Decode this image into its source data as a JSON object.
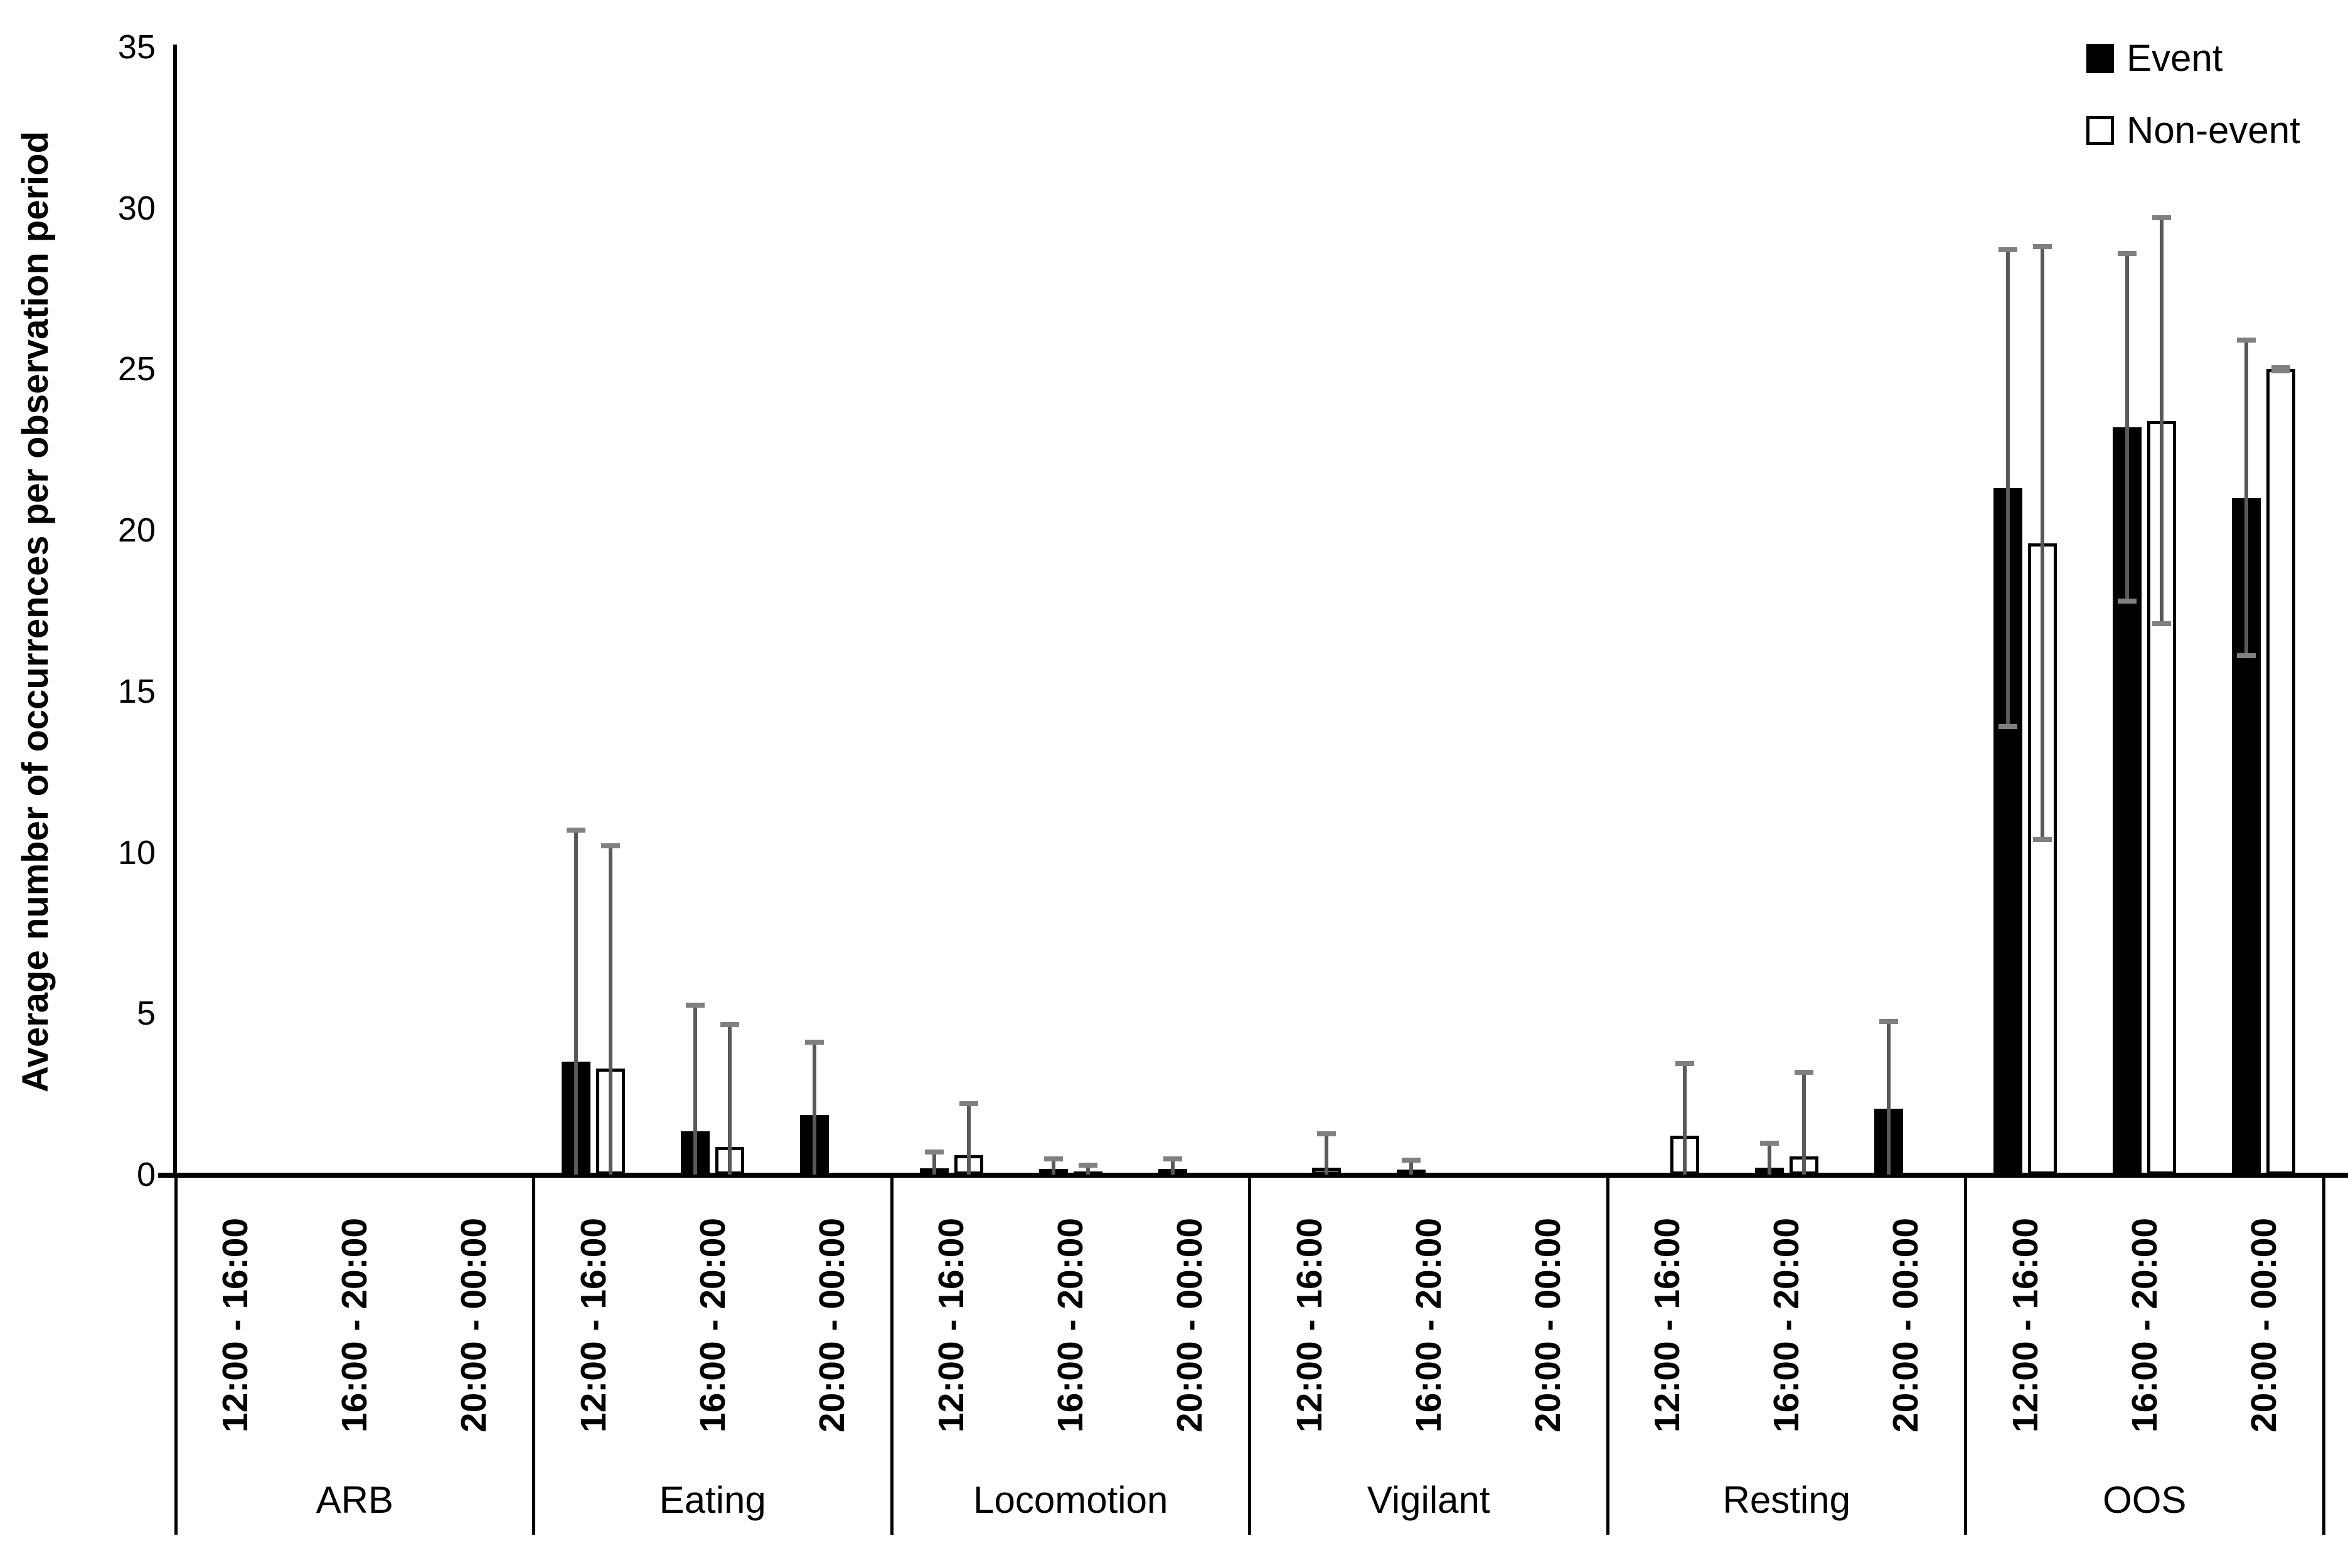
{
  "figure": {
    "background": "#ffffff"
  },
  "y_axis": {
    "title": "Average number of occurrences per observation period",
    "ticks": [
      "0",
      "5",
      "10",
      "15",
      "20",
      "25",
      "30",
      "35"
    ]
  },
  "legend": [
    {
      "label": "Event",
      "fill": "#000000"
    },
    {
      "label": "Non-event",
      "fill": "#ffffff"
    }
  ],
  "colors": {
    "bar_event": "#000000",
    "bar_non_event": "#ffffff",
    "bar_border": "#000000",
    "error_stem": "#595959",
    "error_cap": "#808080",
    "axis": "#000000"
  },
  "chart_data": {
    "type": "bar",
    "title": "",
    "xlabel": "",
    "ylabel": "Average number of occurrences per observation period",
    "ylim": [
      0,
      35
    ],
    "y_tick_step": 5,
    "grid": false,
    "legend_position": "top-right",
    "series_names": [
      "Event",
      "Non-event"
    ],
    "time_periods": [
      "12:00 - 16:00",
      "16:00 - 20:00",
      "20:00 - 00:00"
    ],
    "categories": [
      "ARB",
      "Eating",
      "Locomotion",
      "Vigilant",
      "Resting",
      "OOS"
    ],
    "groups": [
      {
        "category": "ARB",
        "periods": [
          {
            "period": "12:00 - 16:00",
            "event": {
              "value": 0,
              "error": 0
            },
            "non_event": {
              "value": 0,
              "error": 0
            }
          },
          {
            "period": "16:00 - 20:00",
            "event": {
              "value": 0,
              "error": 0
            },
            "non_event": {
              "value": 0,
              "error": 0
            }
          },
          {
            "period": "20:00 - 00:00",
            "event": {
              "value": 0,
              "error": 0
            },
            "non_event": {
              "value": 0,
              "error": 0
            }
          }
        ]
      },
      {
        "category": "Eating",
        "periods": [
          {
            "period": "12:00 - 16:00",
            "event": {
              "value": 3.5,
              "error": 7.2
            },
            "non_event": {
              "value": 3.3,
              "error": 6.9
            }
          },
          {
            "period": "16:00 - 20:00",
            "event": {
              "value": 1.35,
              "error": 3.9
            },
            "non_event": {
              "value": 0.85,
              "error": 3.8
            }
          },
          {
            "period": "20:00 - 00:00",
            "event": {
              "value": 1.85,
              "error": 2.25
            },
            "non_event": {
              "value": 0,
              "error": 0
            }
          }
        ]
      },
      {
        "category": "Locomotion",
        "periods": [
          {
            "period": "12:00 - 16:00",
            "event": {
              "value": 0.2,
              "error": 0.5
            },
            "non_event": {
              "value": 0.6,
              "error": 1.6
            }
          },
          {
            "period": "16:00 - 20:00",
            "event": {
              "value": 0.18,
              "error": 0.3
            },
            "non_event": {
              "value": 0.1,
              "error": 0.2
            }
          },
          {
            "period": "20:00 - 00:00",
            "event": {
              "value": 0.18,
              "error": 0.3
            },
            "non_event": {
              "value": 0,
              "error": 0
            }
          }
        ]
      },
      {
        "category": "Vigilant",
        "periods": [
          {
            "period": "12:00 - 16:00",
            "event": {
              "value": 0,
              "error": 0
            },
            "non_event": {
              "value": 0.22,
              "error": 1.05
            }
          },
          {
            "period": "16:00 - 20:00",
            "event": {
              "value": 0.15,
              "error": 0.3
            },
            "non_event": {
              "value": 0,
              "error": 0
            }
          },
          {
            "period": "20:00 - 00:00",
            "event": {
              "value": 0,
              "error": 0
            },
            "non_event": {
              "value": 0,
              "error": 0
            }
          }
        ]
      },
      {
        "category": "Resting",
        "periods": [
          {
            "period": "12:00 - 16:00",
            "event": {
              "value": 0,
              "error": 0
            },
            "non_event": {
              "value": 1.2,
              "error": 2.25
            }
          },
          {
            "period": "16:00 - 20:00",
            "event": {
              "value": 0.22,
              "error": 0.75
            },
            "non_event": {
              "value": 0.57,
              "error": 2.6
            }
          },
          {
            "period": "20:00 - 00:00",
            "event": {
              "value": 2.05,
              "error": 2.7
            },
            "non_event": {
              "value": 0,
              "error": 0
            }
          }
        ]
      },
      {
        "category": "OOS",
        "periods": [
          {
            "period": "12:00 - 16:00",
            "event": {
              "value": 21.3,
              "error": 7.4
            },
            "non_event": {
              "value": 19.6,
              "error": 9.2
            }
          },
          {
            "period": "16:00 - 20:00",
            "event": {
              "value": 23.2,
              "error": 5.4
            },
            "non_event": {
              "value": 23.4,
              "error": 6.3
            }
          },
          {
            "period": "20:00 - 00:00",
            "event": {
              "value": 21.0,
              "error": 4.9
            },
            "non_event": {
              "value": 25.0,
              "error": 0.05
            }
          }
        ]
      }
    ]
  }
}
